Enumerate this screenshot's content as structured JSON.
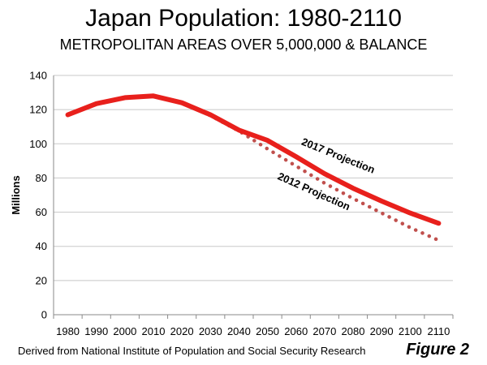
{
  "colors": {
    "projection_2017": "#e8201c",
    "projection_2012": "#c0504d",
    "grid": "#c8c8c8",
    "axis": "#8a8a8a"
  },
  "footer": {
    "source": "Derived from National Institute of Population and Social Security Research",
    "figure": "Figure 2"
  },
  "chart_data": {
    "type": "line",
    "title": "Japan Population: 1980-2110",
    "subtitle": "METROPOLITAN AREAS OVER 5,000,000 & BALANCE",
    "xlabel": "",
    "ylabel": "Millions",
    "ylim": [
      0,
      140
    ],
    "yticks": [
      0,
      20,
      40,
      60,
      80,
      100,
      120,
      140
    ],
    "categories": [
      "1980",
      "1990",
      "2000",
      "2010",
      "2020",
      "2030",
      "2040",
      "2050",
      "2060",
      "2070",
      "2080",
      "2090",
      "2100",
      "2110"
    ],
    "grid": true,
    "series": [
      {
        "name": "2017 Projection",
        "style": "solid",
        "values": [
          117,
          123.5,
          127,
          128,
          124,
          117,
          108,
          102,
          92.5,
          82.5,
          74,
          66.5,
          59.5,
          53.5
        ]
      },
      {
        "name": "2012 Projection",
        "style": "dotted",
        "values": [
          117,
          123.5,
          127,
          128,
          124,
          116.5,
          107.5,
          97,
          87,
          77,
          68,
          59.5,
          51,
          43.5
        ]
      }
    ],
    "annotations": [
      {
        "text": "2017 Projection",
        "series": 0,
        "near": "2060-2090",
        "position": "above line, rotated"
      },
      {
        "text": "2012 Projection",
        "series": 1,
        "near": "2060-2080",
        "position": "below line, rotated"
      }
    ]
  }
}
